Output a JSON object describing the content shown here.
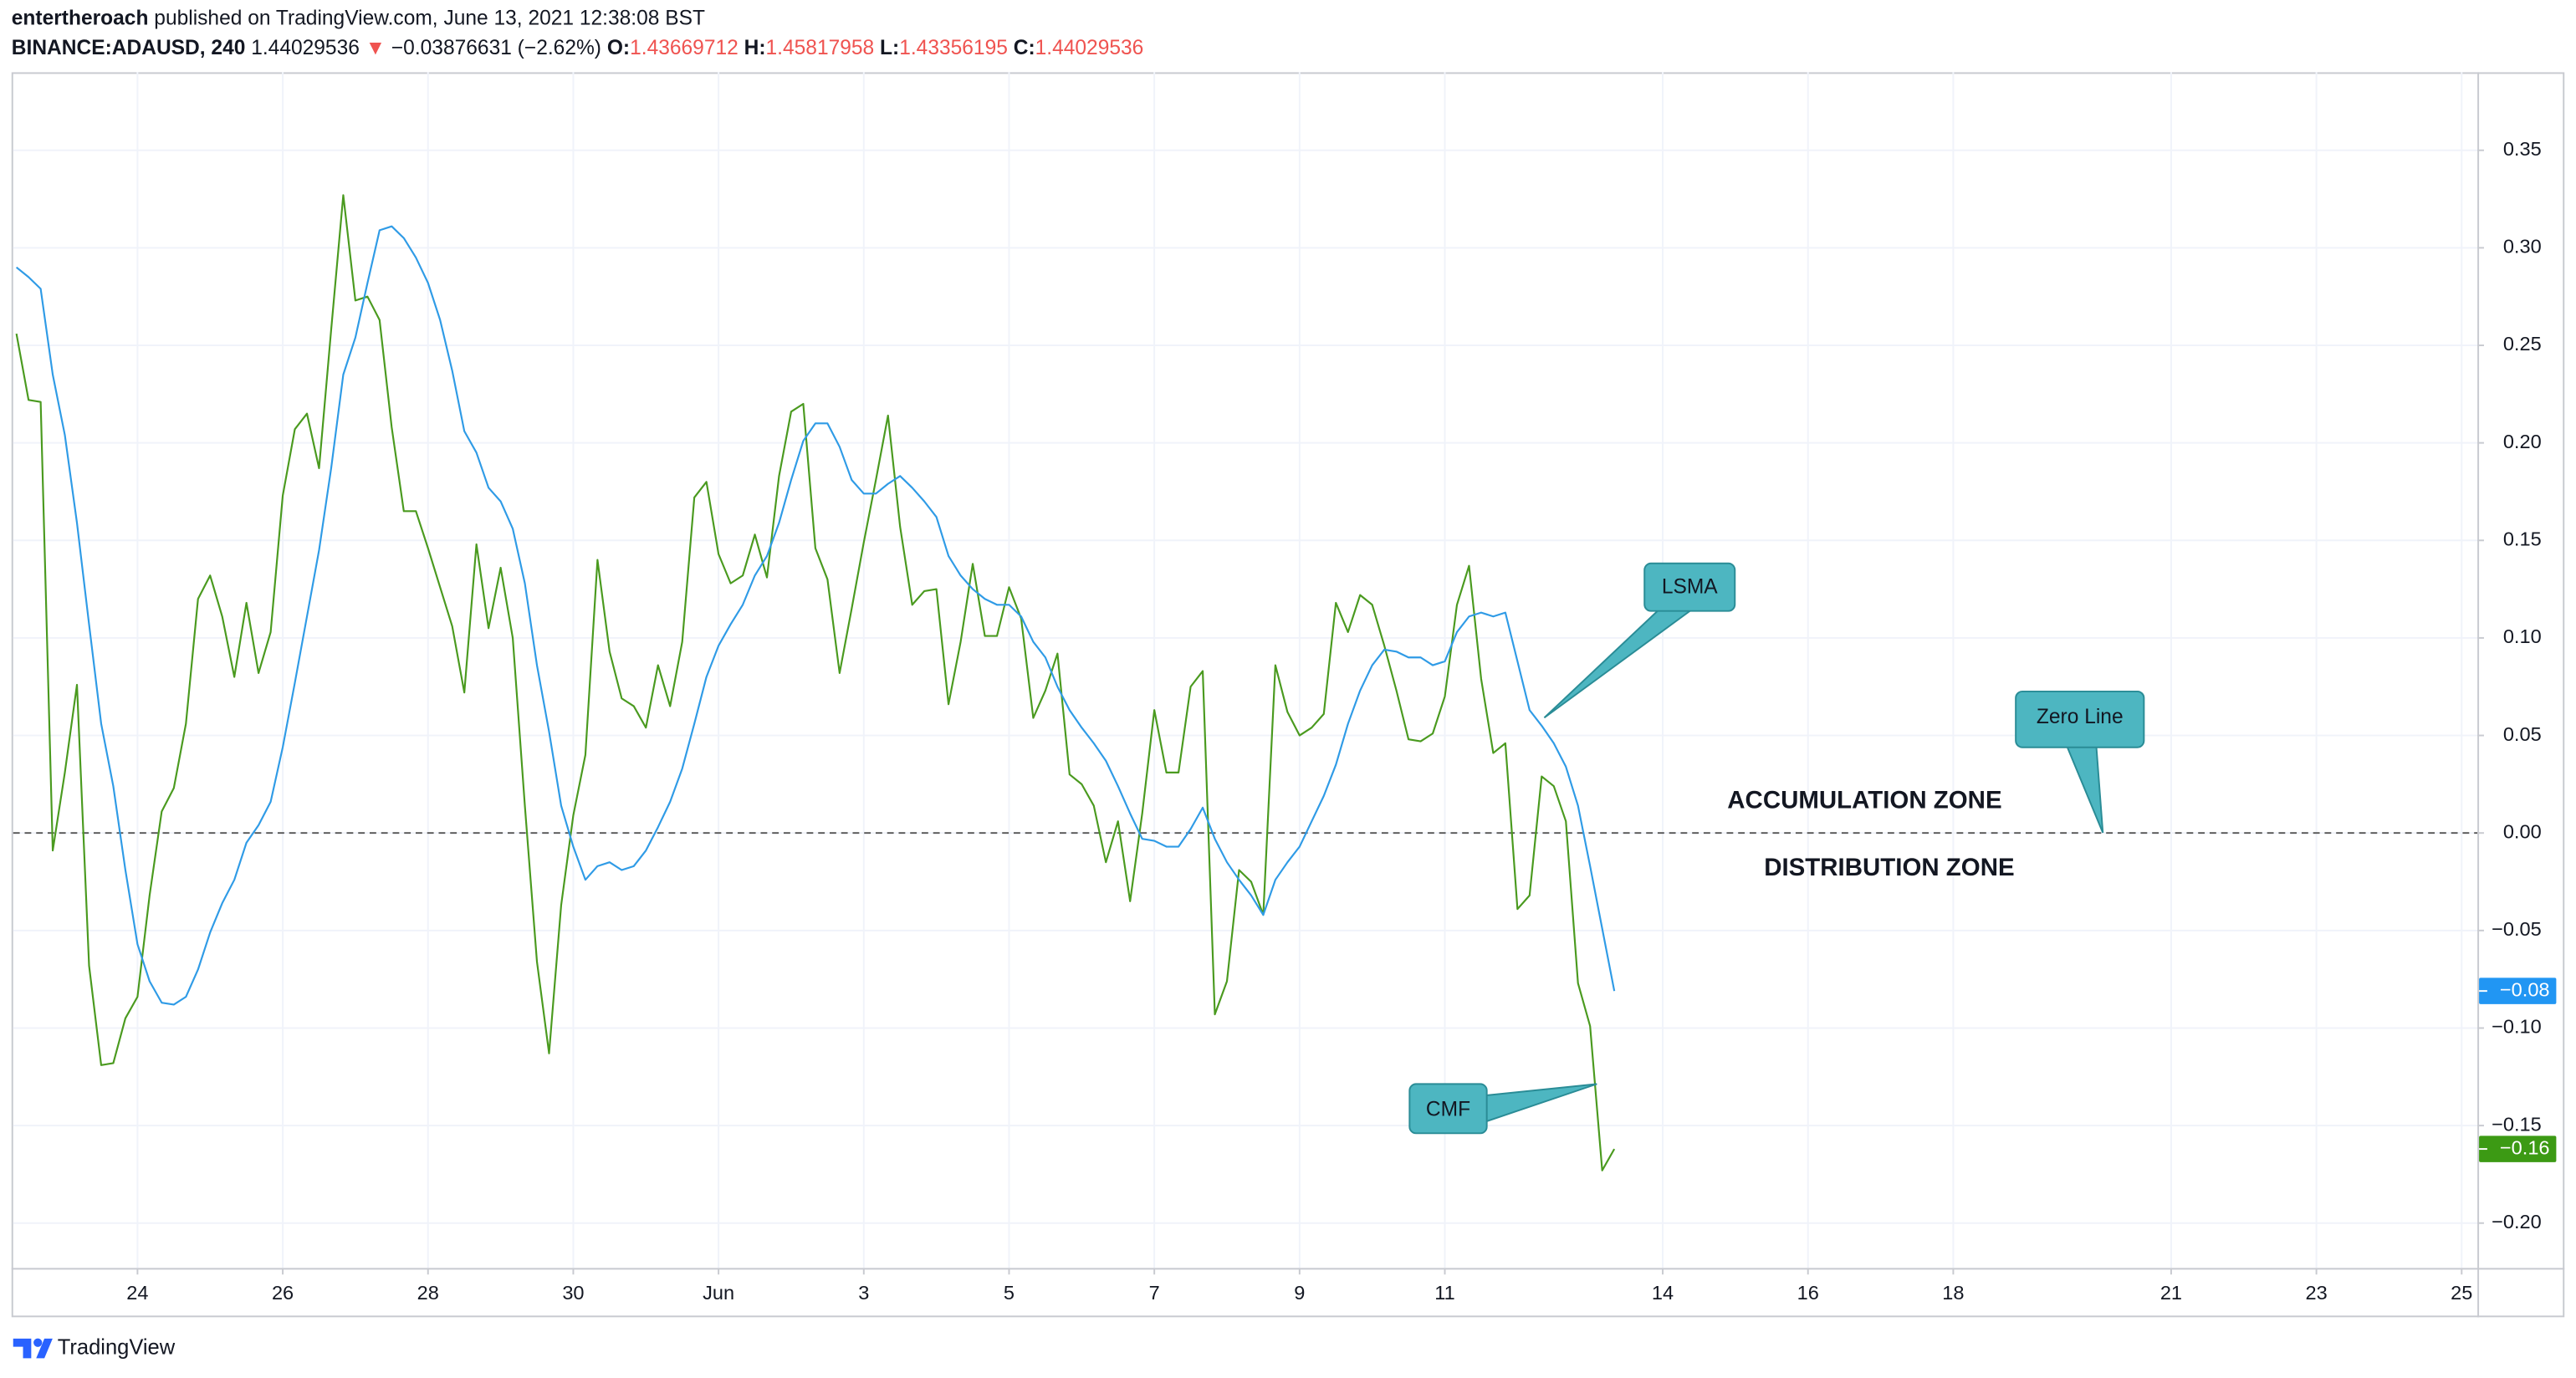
{
  "header": {
    "author": "entertheroach",
    "published": "published on TradingView.com, June 13, 2021 12:38:08 BST",
    "symbol": "BINANCE:ADAUSD, 240",
    "last": "1.44029536",
    "change": "−0.03876631 (−2.62%)",
    "ohlc": [
      {
        "label": "O:",
        "value": "1.43669712"
      },
      {
        "label": "H:",
        "value": "1.45817958"
      },
      {
        "label": "L:",
        "value": "1.43356195"
      },
      {
        "label": "C:",
        "value": "1.44029536"
      }
    ]
  },
  "chart_data": {
    "type": "line",
    "xlim": [
      -0.27,
      203.3
    ],
    "xticks": [
      {
        "value": 10,
        "label": "24"
      },
      {
        "value": 22,
        "label": "26"
      },
      {
        "value": 34,
        "label": "28"
      },
      {
        "value": 46,
        "label": "30"
      },
      {
        "value": 58,
        "label": "Jun"
      },
      {
        "value": 70,
        "label": "3"
      },
      {
        "value": 82,
        "label": "5"
      },
      {
        "value": 94,
        "label": "7"
      },
      {
        "value": 106,
        "label": "9"
      },
      {
        "value": 118,
        "label": "11"
      },
      {
        "value": 136,
        "label": "14"
      },
      {
        "value": 148,
        "label": "16"
      },
      {
        "value": 160,
        "label": "18"
      },
      {
        "value": 178,
        "label": "21"
      },
      {
        "value": 190,
        "label": "23"
      },
      {
        "value": 202,
        "label": "25"
      }
    ],
    "ylim": [
      -0.223,
      0.39
    ],
    "yticks": [
      {
        "value": -0.2,
        "label": "−0.20"
      },
      {
        "value": -0.15,
        "label": "−0.15"
      },
      {
        "value": -0.1,
        "label": "−0.10"
      },
      {
        "value": -0.05,
        "label": "−0.05"
      },
      {
        "value": 0,
        "label": "0.00"
      },
      {
        "value": 0.05,
        "label": "0.05"
      },
      {
        "value": 0.1,
        "label": "0.10"
      },
      {
        "value": 0.15,
        "label": "0.15"
      },
      {
        "value": 0.2,
        "label": "0.20"
      },
      {
        "value": 0.25,
        "label": "0.25"
      },
      {
        "value": 0.3,
        "label": "0.30"
      },
      {
        "value": 0.35,
        "label": "0.35"
      }
    ],
    "grid": true,
    "zero_line": 0,
    "annotations": {
      "zero_line": "Zero Line",
      "above": "ACCUMULATION ZONE",
      "below": "DISTRIBUTION ZONE"
    },
    "series": [
      {
        "name": "CMF",
        "color": "#4a9a1f",
        "label_color": "#3c9a14",
        "last_value_label": "−0.16",
        "values": [
          0.256,
          0.222,
          0.221,
          -0.009,
          0.031,
          0.076,
          -0.068,
          -0.119,
          -0.118,
          -0.095,
          -0.084,
          -0.032,
          0.011,
          0.023,
          0.056,
          0.12,
          0.132,
          0.111,
          0.08,
          0.118,
          0.082,
          0.103,
          0.173,
          0.207,
          0.215,
          0.187,
          0.258,
          0.327,
          0.273,
          0.275,
          0.263,
          0.208,
          0.165,
          0.165,
          0.146,
          0.126,
          0.106,
          0.072,
          0.148,
          0.105,
          0.136,
          0.1,
          0.014,
          -0.066,
          -0.113,
          -0.037,
          0.009,
          0.04,
          0.14,
          0.093,
          0.069,
          0.065,
          0.054,
          0.086,
          0.065,
          0.098,
          0.172,
          0.18,
          0.143,
          0.128,
          0.132,
          0.153,
          0.131,
          0.183,
          0.216,
          0.22,
          0.146,
          0.13,
          0.082,
          0.115,
          0.149,
          0.181,
          0.214,
          0.157,
          0.117,
          0.124,
          0.125,
          0.066,
          0.098,
          0.138,
          0.101,
          0.101,
          0.126,
          0.11,
          0.059,
          0.073,
          0.092,
          0.03,
          0.025,
          0.014,
          -0.015,
          0.006,
          -0.035,
          0.01,
          0.063,
          0.031,
          0.031,
          0.075,
          0.083,
          -0.093,
          -0.076,
          -0.019,
          -0.025,
          -0.042,
          0.086,
          0.062,
          0.05,
          0.054,
          0.061,
          0.118,
          0.103,
          0.122,
          0.117,
          0.096,
          0.073,
          0.048,
          0.047,
          0.051,
          0.07,
          0.117,
          0.137,
          0.079,
          0.041,
          0.046,
          -0.039,
          -0.032,
          0.029,
          0.024,
          0.006,
          -0.077,
          -0.099,
          -0.173,
          -0.162
        ]
      },
      {
        "name": "LSMA",
        "color": "#2f9be6",
        "label_color": "#2196f3",
        "last_value_label": "−0.08",
        "values": [
          0.29,
          0.285,
          0.279,
          0.235,
          0.204,
          0.159,
          0.107,
          0.056,
          0.024,
          -0.019,
          -0.057,
          -0.076,
          -0.087,
          -0.088,
          -0.084,
          -0.07,
          -0.051,
          -0.036,
          -0.024,
          -0.005,
          0.004,
          0.016,
          0.044,
          0.077,
          0.111,
          0.145,
          0.187,
          0.235,
          0.254,
          0.282,
          0.309,
          0.311,
          0.305,
          0.295,
          0.282,
          0.263,
          0.237,
          0.206,
          0.195,
          0.177,
          0.17,
          0.156,
          0.128,
          0.086,
          0.052,
          0.014,
          -0.007,
          -0.024,
          -0.017,
          -0.015,
          -0.019,
          -0.017,
          -0.009,
          0.003,
          0.016,
          0.033,
          0.056,
          0.08,
          0.096,
          0.107,
          0.117,
          0.132,
          0.142,
          0.159,
          0.181,
          0.201,
          0.21,
          0.21,
          0.198,
          0.181,
          0.174,
          0.174,
          0.179,
          0.183,
          0.177,
          0.17,
          0.162,
          0.142,
          0.132,
          0.125,
          0.12,
          0.117,
          0.117,
          0.111,
          0.098,
          0.09,
          0.075,
          0.063,
          0.054,
          0.046,
          0.037,
          0.024,
          0.01,
          -0.003,
          -0.004,
          -0.007,
          -0.007,
          0.002,
          0.013,
          -0.003,
          -0.015,
          -0.024,
          -0.032,
          -0.042,
          -0.024,
          -0.015,
          -0.007,
          0.006,
          0.019,
          0.035,
          0.056,
          0.073,
          0.086,
          0.094,
          0.093,
          0.09,
          0.09,
          0.086,
          0.088,
          0.103,
          0.111,
          0.113,
          0.111,
          0.113,
          0.088,
          0.063,
          0.055,
          0.046,
          0.034,
          0.014,
          -0.017,
          -0.049,
          -0.081
        ]
      }
    ]
  },
  "footer": {
    "brand": "TradingView"
  }
}
